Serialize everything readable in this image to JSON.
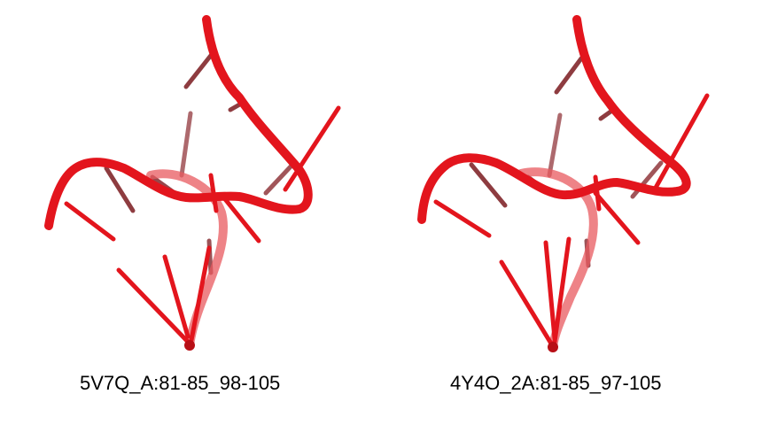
{
  "colors": {
    "backbone": "#e3151d",
    "backbone_shadow": "#b80f16",
    "base_front": "#e3151d",
    "base_back": "#7a1a1f"
  },
  "structures": [
    {
      "label": "5V7Q_A:81-85_98-105"
    },
    {
      "label": "4Y4O_2A:81-85_97-105"
    }
  ]
}
